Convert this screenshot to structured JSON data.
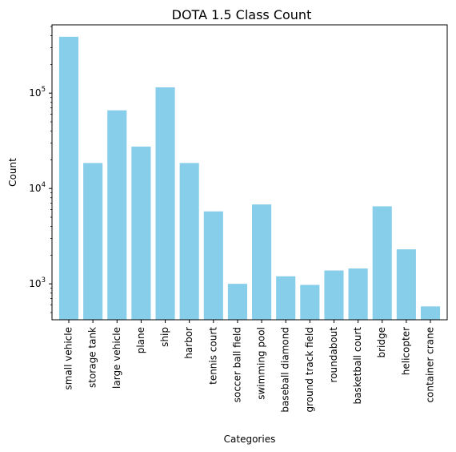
{
  "chart_data": {
    "type": "bar",
    "title": "DOTA 1.5 Class Count",
    "xlabel": "Categories",
    "ylabel": "Count",
    "yscale": "log",
    "ylim": [
      420,
      520000
    ],
    "yticks": [
      {
        "value": 1000,
        "base": "10",
        "exp": "3"
      },
      {
        "value": 10000,
        "base": "10",
        "exp": "4"
      },
      {
        "value": 100000,
        "base": "10",
        "exp": "5"
      }
    ],
    "grid": false,
    "legend": "none",
    "bar_color": "#87ceeb",
    "categories": [
      "small vehicle",
      "storage tank",
      "large vehicle",
      "plane",
      "ship",
      "harbor",
      "tennis court",
      "soccer ball field",
      "swimming pool",
      "baseball diamond",
      "ground track field",
      "roundabout",
      "basketball court",
      "bridge",
      "helicopter",
      "container crane"
    ],
    "values": [
      390000,
      18500,
      66000,
      27500,
      115000,
      18500,
      5750,
      1000,
      6800,
      1200,
      975,
      1380,
      1450,
      6500,
      2300,
      580
    ]
  }
}
